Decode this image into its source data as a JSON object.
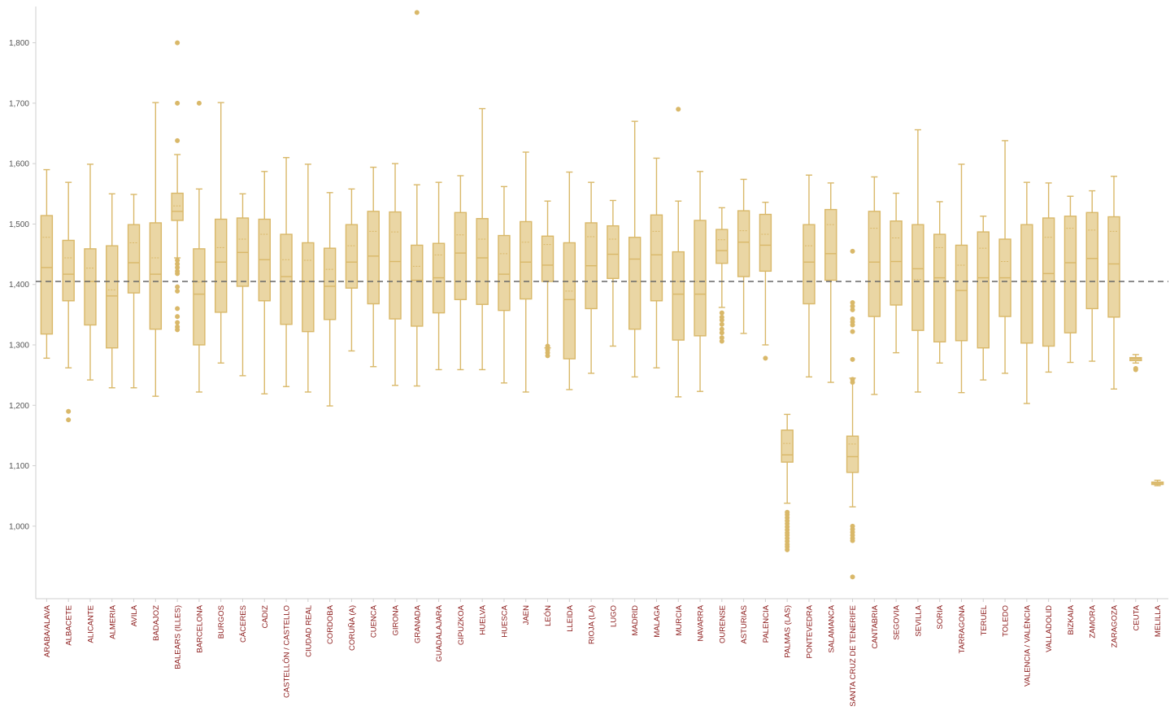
{
  "chart_data": {
    "type": "boxplot",
    "colors": {
      "box_fill": "#ead6a4",
      "box_stroke": "#d9b869",
      "reference_line": "#666666",
      "tick_label": "#8b1a1a",
      "axis_label": "#555555"
    },
    "ylim": [
      880,
      1860
    ],
    "yticks": [
      1000,
      1100,
      1200,
      1300,
      1400,
      1500,
      1600,
      1700,
      1800
    ],
    "ytick_labels": [
      "1,000",
      "1,100",
      "1,200",
      "1,300",
      "1,400",
      "1,500",
      "1,600",
      "1,700",
      "1,800"
    ],
    "reference_line": 1405,
    "grid": false,
    "categories": [
      "ARABA/ALAVA",
      "ALBACETE",
      "ALICANTE",
      "ALMERIA",
      "AVILA",
      "BADAJOZ",
      "BALEARS (ILLES)",
      "BARCELONA",
      "BURGOS",
      "CÁCERES",
      "CADIZ",
      "CASTELLÓN / CASTELLO",
      "CIUDAD REAL",
      "CORDOBA",
      "CORUÑA (A)",
      "CUENCA",
      "GIRONA",
      "GRANADA",
      "GUADALAJARA",
      "GIPUZKOA",
      "HUELVA",
      "HUESCA",
      "JAEN",
      "LEÓN",
      "LLEIDA",
      "RIOJA (LA)",
      "LUGO",
      "MADRID",
      "MALAGA",
      "MURCIA",
      "NAVARRA",
      "OURENSE",
      "ASTURIAS",
      "PALENCIA",
      "PALMAS (LAS)",
      "PONTEVEDRA",
      "SALAMANCA",
      "SANTA CRUZ DE TENERIFE",
      "CANTABRIA",
      "SEGOVIA",
      "SEVILLA",
      "SORIA",
      "TARRAGONA",
      "TERUEL",
      "TOLEDO",
      "VALENCIA / VALÈNCIA",
      "VALLADOLID",
      "BIZKAIA",
      "ZAMORA",
      "ZARAGOZA",
      "CEUTA",
      "MELILLA"
    ],
    "boxes": [
      {
        "min": 1278,
        "q1": 1318,
        "median": 1428,
        "q3": 1514,
        "max": 1590,
        "mean": 1478,
        "outliers": []
      },
      {
        "min": 1262,
        "q1": 1373,
        "median": 1417,
        "q3": 1473,
        "max": 1569,
        "mean": 1444,
        "outliers": [
          1190,
          1176
        ]
      },
      {
        "min": 1242,
        "q1": 1333,
        "median": 1405,
        "q3": 1459,
        "max": 1599,
        "mean": 1427,
        "outliers": []
      },
      {
        "min": 1229,
        "q1": 1295,
        "median": 1381,
        "q3": 1464,
        "max": 1550,
        "mean": 1391,
        "outliers": []
      },
      {
        "min": 1229,
        "q1": 1386,
        "median": 1436,
        "q3": 1499,
        "max": 1549,
        "mean": 1469,
        "outliers": []
      },
      {
        "min": 1215,
        "q1": 1326,
        "median": 1417,
        "q3": 1502,
        "max": 1701,
        "mean": 1444,
        "outliers": []
      },
      {
        "min": 1444,
        "q1": 1506,
        "median": 1521,
        "q3": 1551,
        "max": 1615,
        "mean": 1530,
        "outliers": [
          1800,
          1700,
          1638,
          1440,
          1434,
          1428,
          1422,
          1418,
          1396,
          1389,
          1360,
          1347,
          1337,
          1330,
          1325
        ]
      },
      {
        "min": 1222,
        "q1": 1300,
        "median": 1384,
        "q3": 1459,
        "max": 1558,
        "mean": 1404,
        "outliers": [
          1700
        ]
      },
      {
        "min": 1270,
        "q1": 1354,
        "median": 1437,
        "q3": 1508,
        "max": 1701,
        "mean": 1461,
        "outliers": []
      },
      {
        "min": 1249,
        "q1": 1397,
        "median": 1453,
        "q3": 1510,
        "max": 1550,
        "mean": 1475,
        "outliers": []
      },
      {
        "min": 1219,
        "q1": 1373,
        "median": 1441,
        "q3": 1508,
        "max": 1587,
        "mean": 1483,
        "outliers": []
      },
      {
        "min": 1231,
        "q1": 1334,
        "median": 1413,
        "q3": 1483,
        "max": 1610,
        "mean": 1441,
        "outliers": []
      },
      {
        "min": 1222,
        "q1": 1322,
        "median": 1405,
        "q3": 1469,
        "max": 1599,
        "mean": 1440,
        "outliers": []
      },
      {
        "min": 1199,
        "q1": 1342,
        "median": 1397,
        "q3": 1460,
        "max": 1552,
        "mean": 1425,
        "outliers": []
      },
      {
        "min": 1290,
        "q1": 1394,
        "median": 1437,
        "q3": 1499,
        "max": 1558,
        "mean": 1464,
        "outliers": []
      },
      {
        "min": 1264,
        "q1": 1368,
        "median": 1447,
        "q3": 1521,
        "max": 1594,
        "mean": 1488,
        "outliers": []
      },
      {
        "min": 1233,
        "q1": 1343,
        "median": 1438,
        "q3": 1520,
        "max": 1600,
        "mean": 1487,
        "outliers": []
      },
      {
        "min": 1232,
        "q1": 1331,
        "median": 1407,
        "q3": 1465,
        "max": 1565,
        "mean": 1430,
        "outliers": [
          1850
        ]
      },
      {
        "min": 1259,
        "q1": 1353,
        "median": 1411,
        "q3": 1468,
        "max": 1569,
        "mean": 1449,
        "outliers": []
      },
      {
        "min": 1259,
        "q1": 1375,
        "median": 1452,
        "q3": 1519,
        "max": 1580,
        "mean": 1482,
        "outliers": []
      },
      {
        "min": 1259,
        "q1": 1367,
        "median": 1444,
        "q3": 1509,
        "max": 1691,
        "mean": 1475,
        "outliers": []
      },
      {
        "min": 1237,
        "q1": 1357,
        "median": 1417,
        "q3": 1481,
        "max": 1562,
        "mean": 1451,
        "outliers": []
      },
      {
        "min": 1222,
        "q1": 1376,
        "median": 1437,
        "q3": 1504,
        "max": 1619,
        "mean": 1470,
        "outliers": []
      },
      {
        "min": 1295,
        "q1": 1405,
        "median": 1432,
        "q3": 1480,
        "max": 1538,
        "mean": 1466,
        "outliers": [
          1298,
          1292,
          1287,
          1282
        ]
      },
      {
        "min": 1226,
        "q1": 1277,
        "median": 1375,
        "q3": 1469,
        "max": 1586,
        "mean": 1389,
        "outliers": []
      },
      {
        "min": 1253,
        "q1": 1360,
        "median": 1431,
        "q3": 1502,
        "max": 1569,
        "mean": 1479,
        "outliers": []
      },
      {
        "min": 1298,
        "q1": 1410,
        "median": 1450,
        "q3": 1497,
        "max": 1539,
        "mean": 1475,
        "outliers": []
      },
      {
        "min": 1247,
        "q1": 1326,
        "median": 1442,
        "q3": 1478,
        "max": 1670,
        "mean": 1405,
        "outliers": []
      },
      {
        "min": 1262,
        "q1": 1373,
        "median": 1449,
        "q3": 1515,
        "max": 1609,
        "mean": 1488,
        "outliers": []
      },
      {
        "min": 1214,
        "q1": 1308,
        "median": 1384,
        "q3": 1454,
        "max": 1538,
        "mean": 1405,
        "outliers": [
          1690
        ]
      },
      {
        "min": 1223,
        "q1": 1315,
        "median": 1384,
        "q3": 1506,
        "max": 1587,
        "mean": 1405,
        "outliers": []
      },
      {
        "min": 1362,
        "q1": 1435,
        "median": 1456,
        "q3": 1491,
        "max": 1527,
        "mean": 1474,
        "outliers": [
          1353,
          1346,
          1341,
          1334,
          1326,
          1320,
          1312,
          1306
        ]
      },
      {
        "min": 1319,
        "q1": 1413,
        "median": 1470,
        "q3": 1522,
        "max": 1574,
        "mean": 1489,
        "outliers": []
      },
      {
        "min": 1300,
        "q1": 1422,
        "median": 1465,
        "q3": 1516,
        "max": 1536,
        "mean": 1483,
        "outliers": [
          1278
        ]
      },
      {
        "min": 1038,
        "q1": 1106,
        "median": 1118,
        "q3": 1159,
        "max": 1185,
        "mean": 1137,
        "outliers": [
          1023,
          1019,
          1014,
          1009,
          1004,
          999,
          994,
          989,
          985,
          980,
          975,
          970,
          966,
          961
        ]
      },
      {
        "min": 1247,
        "q1": 1368,
        "median": 1437,
        "q3": 1499,
        "max": 1581,
        "mean": 1464,
        "outliers": []
      },
      {
        "min": 1238,
        "q1": 1407,
        "median": 1451,
        "q3": 1524,
        "max": 1568,
        "mean": 1499,
        "outliers": []
      },
      {
        "min": 1032,
        "q1": 1089,
        "median": 1115,
        "q3": 1149,
        "max": 1245,
        "mean": 1136,
        "outliers": [
          1455,
          1370,
          1364,
          1358,
          1343,
          1338,
          1333,
          1322,
          1276,
          1243,
          1238,
          1000,
          995,
          990,
          985,
          980,
          976,
          916
        ]
      },
      {
        "min": 1218,
        "q1": 1347,
        "median": 1437,
        "q3": 1521,
        "max": 1578,
        "mean": 1493,
        "outliers": []
      },
      {
        "min": 1287,
        "q1": 1366,
        "median": 1438,
        "q3": 1505,
        "max": 1551,
        "mean": 1477,
        "outliers": []
      },
      {
        "min": 1222,
        "q1": 1324,
        "median": 1426,
        "q3": 1499,
        "max": 1656,
        "mean": 1408,
        "outliers": []
      },
      {
        "min": 1270,
        "q1": 1305,
        "median": 1411,
        "q3": 1483,
        "max": 1537,
        "mean": 1461,
        "outliers": []
      },
      {
        "min": 1221,
        "q1": 1307,
        "median": 1390,
        "q3": 1465,
        "max": 1599,
        "mean": 1432,
        "outliers": []
      },
      {
        "min": 1242,
        "q1": 1295,
        "median": 1411,
        "q3": 1487,
        "max": 1513,
        "mean": 1460,
        "outliers": []
      },
      {
        "min": 1253,
        "q1": 1347,
        "median": 1411,
        "q3": 1475,
        "max": 1638,
        "mean": 1438,
        "outliers": []
      },
      {
        "min": 1203,
        "q1": 1303,
        "median": 1405,
        "q3": 1499,
        "max": 1569,
        "mean": 1405,
        "outliers": []
      },
      {
        "min": 1255,
        "q1": 1298,
        "median": 1418,
        "q3": 1510,
        "max": 1568,
        "mean": 1478,
        "outliers": []
      },
      {
        "min": 1271,
        "q1": 1320,
        "median": 1436,
        "q3": 1513,
        "max": 1546,
        "mean": 1493,
        "outliers": []
      },
      {
        "min": 1273,
        "q1": 1360,
        "median": 1443,
        "q3": 1519,
        "max": 1555,
        "mean": 1490,
        "outliers": []
      },
      {
        "min": 1227,
        "q1": 1346,
        "median": 1434,
        "q3": 1512,
        "max": 1579,
        "mean": 1488,
        "outliers": []
      },
      {
        "min": 1270,
        "q1": 1274,
        "median": 1277,
        "q3": 1279,
        "max": 1284,
        "mean": 1277,
        "outliers": [
          1259,
          1261
        ]
      },
      {
        "min": 1067,
        "q1": 1069,
        "median": 1071,
        "q3": 1073,
        "max": 1076,
        "mean": 1071,
        "outliers": []
      }
    ]
  }
}
